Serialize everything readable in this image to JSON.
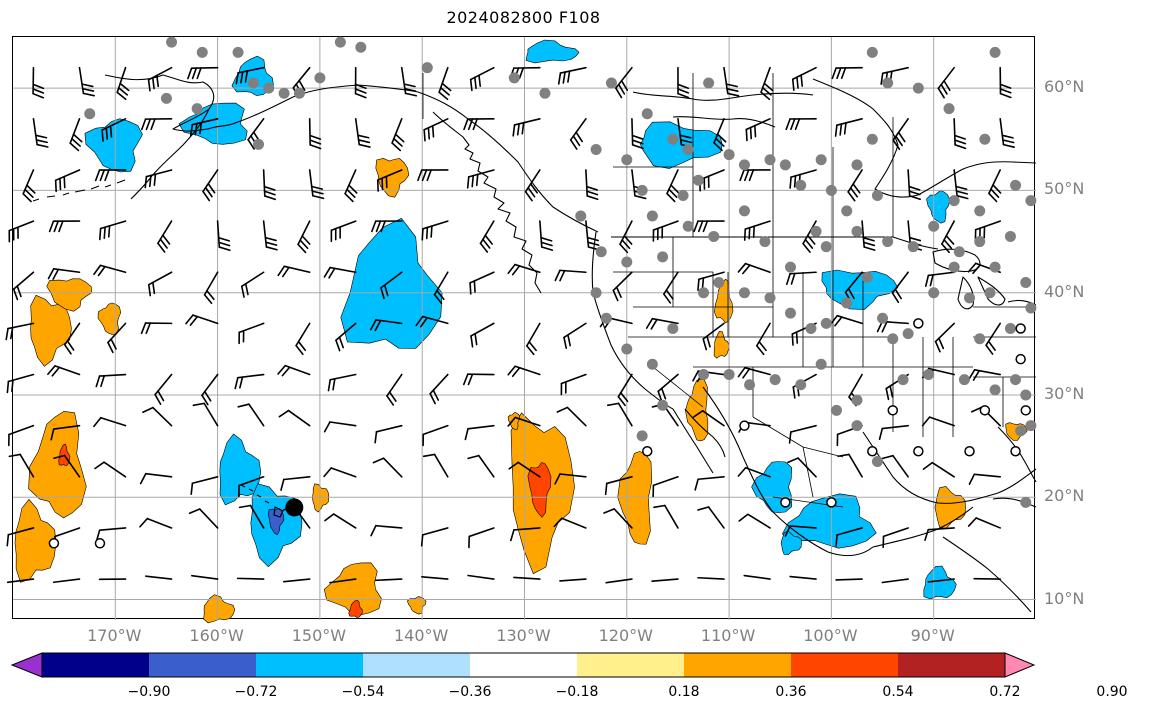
{
  "title": "2024082800 F108",
  "map": {
    "projection": "equirectangular",
    "lon_range": [
      -180,
      -80
    ],
    "lat_range": [
      8,
      65
    ],
    "grid": true,
    "grid_color": "#a8a8a8",
    "land_outline_color": "#000000",
    "station_color": "#808080",
    "hurricane_marker_color": "#000000"
  },
  "axes": {
    "lon_ticks": [
      "170°W",
      "160°W",
      "150°W",
      "140°W",
      "130°W",
      "120°W",
      "110°W",
      "100°W",
      "90°W"
    ],
    "lat_ticks": [
      "60°N",
      "50°N",
      "40°N",
      "30°N",
      "20°N",
      "10°N"
    ],
    "tick_color": "#808080"
  },
  "colorbar": {
    "extend": "both",
    "ticks": [
      "−0.90",
      "−0.72",
      "−0.54",
      "−0.36",
      "−0.18",
      "0.18",
      "0.36",
      "0.54",
      "0.72",
      "0.90"
    ],
    "colors": [
      "#9b30d0",
      "#00008b",
      "#3a5fcd",
      "#00bfff",
      "#b0e0ff",
      "#ffffff",
      "#fff08c",
      "#ffa500",
      "#ff4500",
      "#b22222",
      "#ff89b0"
    ]
  },
  "shaded_regions": [
    {
      "level": "negative_mid",
      "color": "#00bfff",
      "lon": -143,
      "lat": 40,
      "lon_r": 4.5,
      "lat_r": 6
    },
    {
      "level": "negative_mid",
      "color": "#00bfff",
      "lon": -158,
      "lat": 22.5,
      "lon_r": 2,
      "lat_r": 3
    },
    {
      "level": "negative_mid",
      "color": "#00bfff",
      "lon": -154.5,
      "lat": 17.5,
      "lon_r": 2.5,
      "lat_r": 3.5
    },
    {
      "level": "negative_strong",
      "color": "#3a5fcd",
      "lon": -154.3,
      "lat": 17.8,
      "lon_r": 0.7,
      "lat_r": 1.2
    },
    {
      "level": "negative_mid",
      "color": "#00bfff",
      "lon": -170,
      "lat": 54.5,
      "lon_r": 2.5,
      "lat_r": 2.5
    },
    {
      "level": "negative_mid",
      "color": "#00bfff",
      "lon": -160,
      "lat": 56.5,
      "lon_r": 3,
      "lat_r": 2
    },
    {
      "level": "negative_mid",
      "color": "#00bfff",
      "lon": -156.5,
      "lat": 61,
      "lon_r": 1.8,
      "lat_r": 1.8
    },
    {
      "level": "negative_mid",
      "color": "#00bfff",
      "lon": -127.5,
      "lat": 63.5,
      "lon_r": 2.5,
      "lat_r": 1
    },
    {
      "level": "negative_mid",
      "color": "#00bfff",
      "lon": -115,
      "lat": 54.5,
      "lon_r": 4,
      "lat_r": 2
    },
    {
      "level": "negative_mid",
      "color": "#00bfff",
      "lon": -97.5,
      "lat": 40.5,
      "lon_r": 3.5,
      "lat_r": 1.8
    },
    {
      "level": "negative_mid",
      "color": "#00bfff",
      "lon": -89.5,
      "lat": 48.5,
      "lon_r": 1,
      "lat_r": 1.5
    },
    {
      "level": "negative_mid",
      "color": "#00bfff",
      "lon": -105.5,
      "lat": 21,
      "lon_r": 1.8,
      "lat_r": 2.5
    },
    {
      "level": "negative_mid",
      "color": "#00bfff",
      "lon": -100,
      "lat": 17.5,
      "lon_r": 4,
      "lat_r": 2.5
    },
    {
      "level": "negative_mid",
      "color": "#00bfff",
      "lon": -89.5,
      "lat": 11.5,
      "lon_r": 1.5,
      "lat_r": 1.5
    },
    {
      "level": "negative_mid",
      "color": "#00bfff",
      "lon": -104,
      "lat": 15.5,
      "lon_r": 1,
      "lat_r": 1
    },
    {
      "level": "positive_mid",
      "color": "#ffa500",
      "lon": -128.5,
      "lat": 21,
      "lon_r": 3,
      "lat_r": 7
    },
    {
      "level": "positive_strong",
      "color": "#ff4500",
      "lon": -128.5,
      "lat": 21,
      "lon_r": 1,
      "lat_r": 2.5
    },
    {
      "level": "positive_mid",
      "color": "#ffa500",
      "lon": -119,
      "lat": 20,
      "lon_r": 1.5,
      "lat_r": 4.5
    },
    {
      "level": "positive_mid",
      "color": "#ffa500",
      "lon": -175.5,
      "lat": 23,
      "lon_r": 2.5,
      "lat_r": 5
    },
    {
      "level": "positive_strong",
      "color": "#ff4500",
      "lon": -175,
      "lat": 24,
      "lon_r": 0.5,
      "lat_r": 1
    },
    {
      "level": "positive_mid",
      "color": "#ffa500",
      "lon": -178,
      "lat": 15.5,
      "lon_r": 2,
      "lat_r": 3.5
    },
    {
      "level": "positive_mid",
      "color": "#ffa500",
      "lon": -176.5,
      "lat": 36.5,
      "lon_r": 2,
      "lat_r": 3
    },
    {
      "level": "positive_mid",
      "color": "#ffa500",
      "lon": -174.5,
      "lat": 40,
      "lon_r": 2,
      "lat_r": 1.5
    },
    {
      "level": "positive_mid",
      "color": "#ffa500",
      "lon": -170.5,
      "lat": 37.5,
      "lon_r": 1,
      "lat_r": 1.5
    },
    {
      "level": "positive_mid",
      "color": "#ffa500",
      "lon": -146.5,
      "lat": 11,
      "lon_r": 2.5,
      "lat_r": 2.5
    },
    {
      "level": "positive_strong",
      "color": "#ff4500",
      "lon": -146.5,
      "lat": 9,
      "lon_r": 0.6,
      "lat_r": 0.8
    },
    {
      "level": "positive_mid",
      "color": "#ffa500",
      "lon": -160,
      "lat": 9,
      "lon_r": 1.5,
      "lat_r": 1.2
    },
    {
      "level": "positive_mid",
      "color": "#ffa500",
      "lon": -150,
      "lat": 20,
      "lon_r": 0.8,
      "lat_r": 1.2
    },
    {
      "level": "positive_mid",
      "color": "#ffa500",
      "lon": -143,
      "lat": 51.5,
      "lon_r": 1.5,
      "lat_r": 1.8
    },
    {
      "level": "positive_mid",
      "color": "#ffa500",
      "lon": -131,
      "lat": 27.5,
      "lon_r": 0.5,
      "lat_r": 0.8
    },
    {
      "level": "positive_mid",
      "color": "#ffa500",
      "lon": -113,
      "lat": 28.5,
      "lon_r": 1,
      "lat_r": 3
    },
    {
      "level": "positive_mid",
      "color": "#ffa500",
      "lon": -110.5,
      "lat": 39,
      "lon_r": 0.8,
      "lat_r": 2
    },
    {
      "level": "positive_mid",
      "color": "#ffa500",
      "lon": -110.8,
      "lat": 34.8,
      "lon_r": 0.7,
      "lat_r": 1.2
    },
    {
      "level": "positive_mid",
      "color": "#ffa500",
      "lon": -88.5,
      "lat": 19,
      "lon_r": 1.5,
      "lat_r": 1.8
    },
    {
      "level": "positive_mid",
      "color": "#ffa500",
      "lon": -82,
      "lat": 26.5,
      "lon_r": 1,
      "lat_r": 0.8
    },
    {
      "level": "positive_mid",
      "color": "#ffa500",
      "lon": -140.5,
      "lat": 9.5,
      "lon_r": 0.8,
      "lat_r": 0.8
    }
  ],
  "stations": [
    [
      -172.5,
      57.5
    ],
    [
      -164.5,
      64.5
    ],
    [
      -165,
      59
    ],
    [
      -162,
      58
    ],
    [
      -161.5,
      63.5
    ],
    [
      -158,
      63.5
    ],
    [
      -156,
      54.5
    ],
    [
      -156.5,
      60.5
    ],
    [
      -155,
      60
    ],
    [
      -153.5,
      59.5
    ],
    [
      -152,
      59.5
    ],
    [
      -150,
      61
    ],
    [
      -148,
      64.5
    ],
    [
      -146,
      64
    ],
    [
      -139.5,
      62
    ],
    [
      -131,
      61
    ],
    [
      -128,
      59.5
    ],
    [
      -121.5,
      60.5
    ],
    [
      -118,
      57.5
    ],
    [
      -123,
      54
    ],
    [
      -120,
      53
    ],
    [
      -118.5,
      50
    ],
    [
      -115.5,
      55
    ],
    [
      -114,
      54
    ],
    [
      -113,
      51
    ],
    [
      -114.5,
      49.5
    ],
    [
      -112,
      60.5
    ],
    [
      -110,
      53.5
    ],
    [
      -108.5,
      52.5
    ],
    [
      -106,
      53
    ],
    [
      -104.5,
      52.5
    ],
    [
      -103,
      50.5
    ],
    [
      -101,
      53
    ],
    [
      -100,
      50
    ],
    [
      -97.5,
      52.5
    ],
    [
      -95.5,
      49.5
    ],
    [
      -96,
      55
    ],
    [
      -94.5,
      60.5
    ],
    [
      -96,
      63.5
    ],
    [
      -91.5,
      60
    ],
    [
      -88.5,
      58
    ],
    [
      -84,
      63.5
    ],
    [
      -85,
      55
    ],
    [
      -88,
      49
    ],
    [
      -85.5,
      48
    ],
    [
      -82,
      50.5
    ],
    [
      -80.5,
      49
    ],
    [
      -124.5,
      47.5
    ],
    [
      -122.5,
      44
    ],
    [
      -123,
      40
    ],
    [
      -120,
      43
    ],
    [
      -117.5,
      47.5
    ],
    [
      -116.5,
      43.5
    ],
    [
      -114,
      46.5
    ],
    [
      -111.5,
      45.5
    ],
    [
      -108.5,
      48
    ],
    [
      -106.5,
      45
    ],
    [
      -104,
      42.5
    ],
    [
      -101.5,
      46
    ],
    [
      -100.5,
      44.5
    ],
    [
      -98.5,
      48
    ],
    [
      -97.5,
      46
    ],
    [
      -94.5,
      45
    ],
    [
      -92,
      44.5
    ],
    [
      -90,
      46.5
    ],
    [
      -87.5,
      44
    ],
    [
      -85.5,
      45
    ],
    [
      -82.5,
      45.5
    ],
    [
      -84,
      42.5
    ],
    [
      -122,
      37.5
    ],
    [
      -120,
      34.5
    ],
    [
      -117.5,
      33
    ],
    [
      -115.5,
      36.5
    ],
    [
      -112.5,
      40
    ],
    [
      -111,
      41
    ],
    [
      -108.5,
      40
    ],
    [
      -106,
      39.5
    ],
    [
      -104,
      38
    ],
    [
      -102,
      36.5
    ],
    [
      -101,
      33
    ],
    [
      -100.5,
      37
    ],
    [
      -98.5,
      39
    ],
    [
      -96.5,
      41.5
    ],
    [
      -95,
      37.5
    ],
    [
      -94,
      35.5
    ],
    [
      -92.5,
      36
    ],
    [
      -90,
      40
    ],
    [
      -88,
      42.5
    ],
    [
      -86.5,
      39.5
    ],
    [
      -84.5,
      40
    ],
    [
      -82.5,
      36.5
    ],
    [
      -81,
      41
    ],
    [
      -80.5,
      38.5
    ],
    [
      -116.5,
      29
    ],
    [
      -112.5,
      32
    ],
    [
      -110,
      32
    ],
    [
      -108,
      31
    ],
    [
      -105.5,
      31.5
    ],
    [
      -103,
      31
    ],
    [
      -99.5,
      28.5
    ],
    [
      -97.5,
      29.5
    ],
    [
      -93,
      31.5
    ],
    [
      -90.5,
      32
    ],
    [
      -87,
      31.5
    ],
    [
      -84,
      30.5
    ],
    [
      -82,
      31.5
    ],
    [
      -81,
      30
    ],
    [
      -95.5,
      23.5
    ],
    [
      -97.5,
      27
    ],
    [
      -81.5,
      26.5
    ],
    [
      -80.5,
      27
    ],
    [
      -81,
      19.5
    ],
    [
      -118.5,
      26
    ],
    [
      -85.5,
      35.5
    ]
  ],
  "open_circles": [
    [
      -176,
      15.5
    ],
    [
      -171.5,
      15.5
    ],
    [
      -118,
      24.5
    ],
    [
      -108.5,
      27
    ],
    [
      -104.5,
      19.5
    ],
    [
      -100,
      19.5
    ],
    [
      -96,
      24.5
    ],
    [
      -91.5,
      24.5
    ],
    [
      -86.5,
      24.5
    ],
    [
      -94,
      28.5
    ],
    [
      -85,
      28.5
    ],
    [
      -91.5,
      37
    ],
    [
      -81.5,
      33.5
    ],
    [
      -81,
      28.5
    ],
    [
      -81.5,
      36.5
    ],
    [
      -82,
      24.5
    ]
  ],
  "hurricane_markers": [
    [
      -152.5,
      19
    ]
  ],
  "wind_barbs": {
    "spacing_lon": 4.5,
    "spacing_lat": 5
  }
}
